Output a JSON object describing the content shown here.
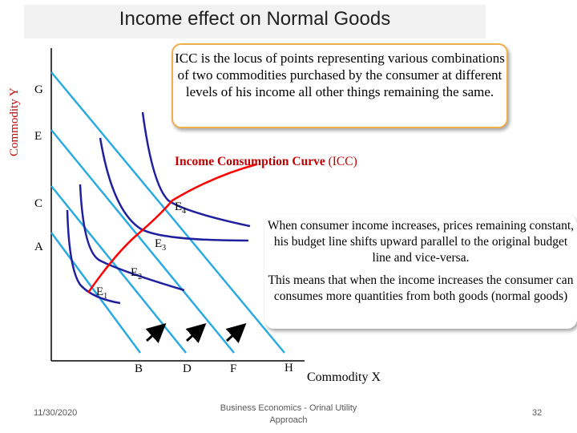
{
  "title": "Income effect on Normal Goods",
  "axes": {
    "y_label": "Commodity Y",
    "x_label": "Commodity X"
  },
  "y_points": [
    "G",
    "E",
    "C",
    "A"
  ],
  "x_points": [
    "B",
    "D",
    "F",
    "H"
  ],
  "equilibria": [
    {
      "base": "E",
      "sub": "1"
    },
    {
      "base": "E",
      "sub": "2"
    },
    {
      "base": "E",
      "sub": "3"
    },
    {
      "base": "E",
      "sub": "4"
    }
  ],
  "icc_label": {
    "bold": "Income Consumption Curve",
    "normal": "(ICC)"
  },
  "definition": "ICC is the locus of points representing various combinations of two commodities purchased by the consumer at different levels of his income all other things remaining the same.",
  "explanation": [
    "When consumer income increases, prices remaining constant, his budget line shifts upward parallel to the original budget line and vice-versa.",
    "This means that when the income increases the consumer can consumes more quantities from both goods (normal goods)"
  ],
  "footer": {
    "date": "11/30/2020",
    "course": "Business Economics - Orinal Utility Approach",
    "page": "32"
  },
  "colors": {
    "budget_line": "#29abe2",
    "indiff_curve": "#1f1f9f",
    "icc": "#ff0000",
    "box_border": "#f0ad4e",
    "accent_text": "#c00000"
  }
}
